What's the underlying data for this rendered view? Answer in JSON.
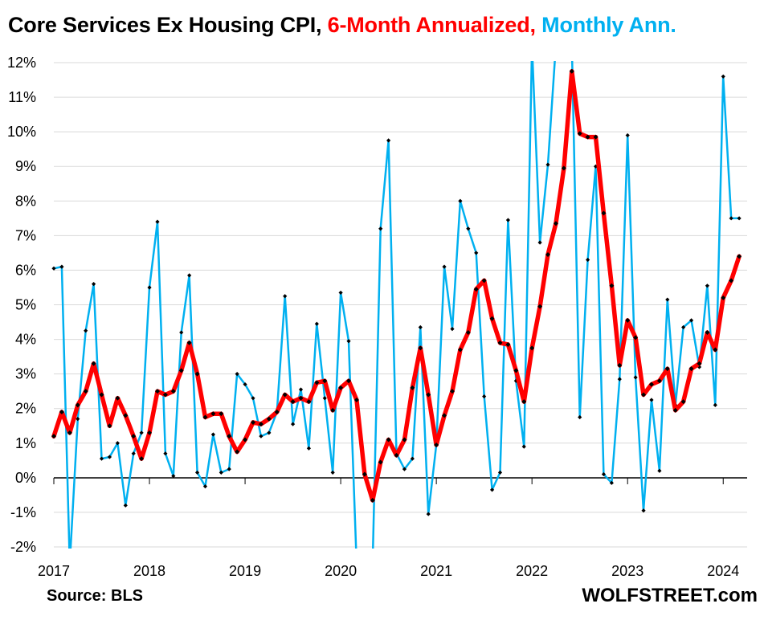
{
  "title": {
    "part1": "Core Services Ex Housing CPI,",
    "part2": "6-Month Annualized,",
    "part3": "Monthly Ann."
  },
  "source": "Source: BLS",
  "brand": "WOLFSTREET.com",
  "colors": {
    "six_month": "#ff0000",
    "monthly": "#00b0f0",
    "marker": "#000000"
  },
  "chart_data": {
    "type": "line",
    "title": "Core Services Ex Housing CPI, 6-Month Annualized, Monthly Ann.",
    "xlabel": "",
    "ylabel": "",
    "ylim": [
      -2,
      12
    ],
    "xlim": [
      2017,
      2024.25
    ],
    "y_ticks": [
      "-2%",
      "-1%",
      "0%",
      "1%",
      "2%",
      "3%",
      "4%",
      "5%",
      "6%",
      "7%",
      "8%",
      "9%",
      "10%",
      "11%",
      "12%"
    ],
    "y_tick_values": [
      -2,
      -1,
      0,
      1,
      2,
      3,
      4,
      5,
      6,
      7,
      8,
      9,
      10,
      11,
      12
    ],
    "x_ticks": [
      "2017",
      "2018",
      "2019",
      "2020",
      "2021",
      "2022",
      "2023",
      "2024"
    ],
    "x_tick_values": [
      2017,
      2018,
      2019,
      2020,
      2021,
      2022,
      2023,
      2024
    ],
    "grid": "horizontal",
    "x_start": "2017-01",
    "frequency": "monthly",
    "series": [
      {
        "name": "6-Month Annualized",
        "values": [
          1.2,
          1.9,
          1.3,
          2.1,
          2.5,
          3.3,
          2.4,
          1.5,
          2.3,
          1.8,
          1.2,
          0.55,
          1.3,
          2.5,
          2.4,
          2.5,
          3.1,
          3.9,
          3.0,
          1.75,
          1.85,
          1.85,
          1.2,
          0.75,
          1.1,
          1.6,
          1.55,
          1.7,
          1.9,
          2.4,
          2.2,
          2.3,
          2.2,
          2.75,
          2.8,
          1.95,
          2.6,
          2.8,
          2.25,
          0.1,
          -0.65,
          0.45,
          1.1,
          0.65,
          1.1,
          2.6,
          3.75,
          2.4,
          0.95,
          1.8,
          2.5,
          3.7,
          4.2,
          5.45,
          5.7,
          4.6,
          3.9,
          3.85,
          3.1,
          2.2,
          3.75,
          4.95,
          6.45,
          7.35,
          8.95,
          11.75,
          9.95,
          9.85,
          9.85,
          7.65,
          5.55,
          3.25,
          4.55,
          4.05,
          2.4,
          2.7,
          2.8,
          3.15,
          1.95,
          2.2,
          3.15,
          3.3,
          4.2,
          3.7,
          5.2,
          5.7,
          6.4
        ]
      },
      {
        "name": "Monthly Ann.",
        "values": [
          6.05,
          6.1,
          -2.5,
          1.7,
          4.25,
          5.6,
          0.55,
          0.6,
          1.0,
          -0.8,
          0.7,
          1.3,
          5.5,
          7.4,
          0.7,
          0.05,
          4.2,
          5.85,
          0.15,
          -0.25,
          1.25,
          0.15,
          0.25,
          3.0,
          2.7,
          2.3,
          1.2,
          1.3,
          1.9,
          5.25,
          1.55,
          2.55,
          0.85,
          4.45,
          2.3,
          0.15,
          5.35,
          3.95,
          -2.5,
          -2.5,
          -2.5,
          7.2,
          9.75,
          0.7,
          0.25,
          0.55,
          4.35,
          -1.05,
          0.95,
          6.1,
          4.3,
          8.0,
          7.2,
          6.5,
          2.35,
          -0.35,
          0.15,
          7.45,
          2.8,
          0.9,
          12.5,
          6.8,
          9.05,
          12.5,
          12.5,
          12.5,
          1.75,
          6.3,
          9.0,
          0.1,
          -0.15,
          2.85,
          9.9,
          2.9,
          -0.95,
          2.25,
          0.2,
          5.15,
          2.1,
          4.35,
          4.55,
          3.2,
          5.55,
          2.1,
          11.6,
          7.5,
          7.5
        ]
      }
    ]
  }
}
